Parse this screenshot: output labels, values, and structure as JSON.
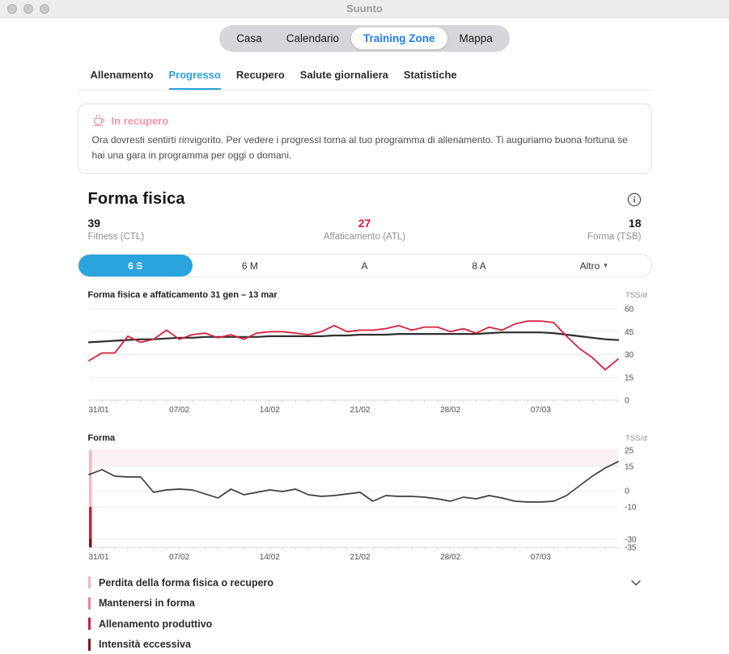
{
  "window": {
    "title": "Suunto"
  },
  "nav": {
    "items": [
      "Casa",
      "Calendario",
      "Training Zone",
      "Mappa"
    ],
    "active": "Training Zone",
    "active_color": "#1f7cf5"
  },
  "tabs": {
    "items": [
      "Allenamento",
      "Progresso",
      "Recupero",
      "Salute giornaliera",
      "Statistiche"
    ],
    "active": "Progresso",
    "accent_color": "#2ba2da"
  },
  "recovery_card": {
    "icon": "coffee-cup-icon",
    "title": "In recupero",
    "title_color": "#f294a9",
    "body": "Ora dovresti sentirti rinvigorito. Per vedere i progressi torna al tuo programma di allenamento. Ti auguriamo buona fortuna se hai una gara in programma per oggi o domani."
  },
  "section": {
    "title": "Forma fisica"
  },
  "stats": [
    {
      "value": "39",
      "label": "Fitness (CTL)",
      "value_color": "#1b1b1b"
    },
    {
      "value": "27",
      "label": "Affaticamento (ATL)",
      "value_color": "#dc1e3c"
    },
    {
      "value": "18",
      "label": "Forma (TSB)",
      "value_color": "#1b1b1b"
    }
  ],
  "range_selector": {
    "options": [
      {
        "label": "6 S",
        "active": true
      },
      {
        "label": "6 M",
        "active": false
      },
      {
        "label": "A",
        "active": false
      },
      {
        "label": "8 A",
        "active": false
      },
      {
        "label": "Altro",
        "active": false,
        "caret": true
      }
    ],
    "active_color": "#29a4dc"
  },
  "chart_data": [
    {
      "type": "line",
      "title": "Forma fisica e affaticamento 31 gen – 13 mar",
      "unit": "TSS/d",
      "ylim": [
        0,
        60
      ],
      "yticks": [
        0,
        15,
        30,
        45,
        60
      ],
      "x_tick_labels": [
        "31/01",
        "07/02",
        "14/02",
        "21/02",
        "28/02",
        "07/03"
      ],
      "x_tick_positions": [
        0,
        7,
        14,
        21,
        28,
        35
      ],
      "grid": true,
      "legend_position": "none",
      "series": [
        {
          "name": "Fitness (CTL)",
          "color": "#2e2e2e",
          "values": [
            38,
            38.5,
            39,
            39.5,
            40,
            40,
            40.5,
            41,
            41,
            41.5,
            41.5,
            41.5,
            41.5,
            41.5,
            42,
            42,
            42,
            42,
            42,
            42.5,
            42.5,
            43,
            43,
            43,
            43.5,
            43.5,
            43.5,
            43.5,
            43.5,
            43.5,
            43.5,
            44,
            44.5,
            44.5,
            44.5,
            44.5,
            44,
            43,
            42,
            41,
            40,
            39.5
          ]
        },
        {
          "name": "Affaticamento (ATL)",
          "color": "#d9203c",
          "values": [
            26,
            31,
            31,
            42,
            38,
            40,
            46,
            40,
            43,
            44,
            41,
            43,
            40,
            44,
            45,
            45,
            44,
            43,
            45,
            49,
            45,
            46,
            46,
            47,
            49,
            46,
            48,
            48,
            45,
            47,
            44,
            48,
            46,
            50,
            52,
            52,
            51,
            42,
            34,
            28,
            20,
            27
          ]
        }
      ]
    },
    {
      "type": "line",
      "title": "Forma",
      "unit": "TSS/d",
      "ylim": [
        -35,
        25
      ],
      "yticks": [
        -35,
        -30,
        -10,
        0,
        15,
        25
      ],
      "x_tick_labels": [
        "31/01",
        "07/02",
        "14/02",
        "21/02",
        "28/02",
        "07/03"
      ],
      "x_tick_positions": [
        0,
        7,
        14,
        21,
        28,
        35
      ],
      "grid": true,
      "band": {
        "from": 15,
        "to": 25,
        "color": "#fbf0f2"
      },
      "zone_stripe": [
        {
          "from": 25,
          "to": -10,
          "color": "#f3b5c2"
        },
        {
          "from": -10,
          "to": -30,
          "color": "#cb2139"
        },
        {
          "from": -30,
          "to": -35,
          "color": "#7c1824"
        }
      ],
      "series": [
        {
          "name": "Forma (TSB)",
          "color": "#3d3d3d",
          "values": [
            10,
            13,
            9,
            8.5,
            8.5,
            -1,
            0.5,
            1,
            0.5,
            -2,
            -4.5,
            1,
            -2.5,
            -1,
            0.5,
            -0.5,
            1,
            -2.5,
            -3.5,
            -3,
            -2,
            -1,
            -6.5,
            -3,
            -3.5,
            -3.5,
            -4,
            -5,
            -6.5,
            -4,
            -5,
            -3,
            -4.5,
            -6.5,
            -7,
            -7,
            -6.5,
            -3,
            3,
            9,
            14,
            18
          ]
        }
      ]
    }
  ],
  "legend": {
    "items": [
      {
        "label": "Perdita della forma fisica o recupero",
        "color": "#f3b5c2",
        "expandable": true
      },
      {
        "label": "Mantenersi in forma",
        "color": "#ea8098"
      },
      {
        "label": "Allenamento produttivo",
        "color": "#cb2139"
      },
      {
        "label": "Intensità eccessiva",
        "color": "#7c1824"
      }
    ]
  }
}
